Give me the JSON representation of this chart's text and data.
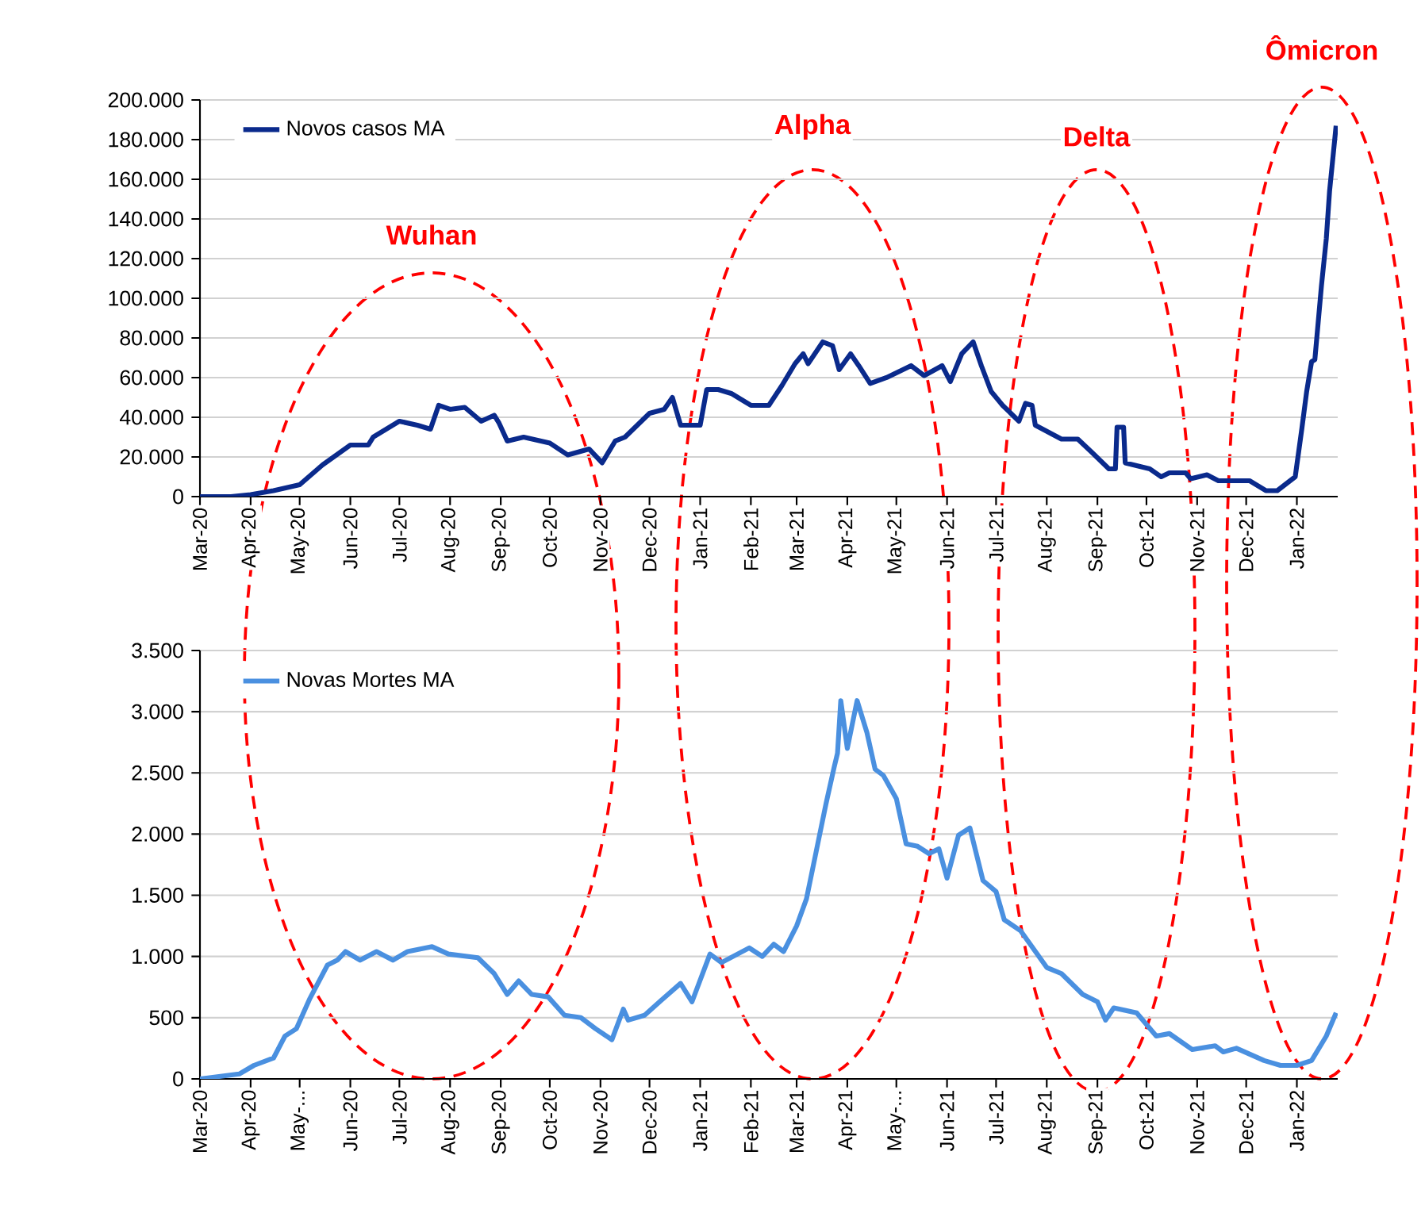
{
  "chart_data": [
    {
      "type": "line",
      "legend": "top left",
      "grid": "y",
      "xlim": [
        "2020-03-01",
        "2022-01-26"
      ],
      "ylim": [
        0,
        200000
      ],
      "xticks": [
        {
          "value": "2020-03-01",
          "label": "Mar-20"
        },
        {
          "value": "2020-04-01",
          "label": "Apr-20"
        },
        {
          "value": "2020-05-01",
          "label": "May-20"
        },
        {
          "value": "2020-06-01",
          "label": "Jun-20"
        },
        {
          "value": "2020-07-01",
          "label": "Jul-20"
        },
        {
          "value": "2020-08-01",
          "label": "Aug-20"
        },
        {
          "value": "2020-09-01",
          "label": "Sep-20"
        },
        {
          "value": "2020-10-01",
          "label": "Oct-20"
        },
        {
          "value": "2020-11-01",
          "label": "Nov-20"
        },
        {
          "value": "2020-12-01",
          "label": "Dec-20"
        },
        {
          "value": "2021-01-01",
          "label": "Jan-21"
        },
        {
          "value": "2021-02-01",
          "label": "Feb-21"
        },
        {
          "value": "2021-03-01",
          "label": "Mar-21"
        },
        {
          "value": "2021-04-01",
          "label": "Apr-21"
        },
        {
          "value": "2021-05-01",
          "label": "May-21"
        },
        {
          "value": "2021-06-01",
          "label": "Jun-21"
        },
        {
          "value": "2021-07-01",
          "label": "Jul-21"
        },
        {
          "value": "2021-08-01",
          "label": "Aug-21"
        },
        {
          "value": "2021-09-01",
          "label": "Sep-21"
        },
        {
          "value": "2021-10-01",
          "label": "Oct-21"
        },
        {
          "value": "2021-11-01",
          "label": "Nov-21"
        },
        {
          "value": "2021-12-01",
          "label": "Dec-21"
        },
        {
          "value": "2022-01-01",
          "label": "Jan-22"
        }
      ],
      "yticks": [
        0,
        {
          "value": 20000,
          "label": "20.000"
        },
        {
          "value": 40000,
          "label": "40.000"
        },
        {
          "value": 60000,
          "label": "60.000"
        },
        {
          "value": 80000,
          "label": "80.000"
        },
        {
          "value": 100000,
          "label": "100.000"
        },
        {
          "value": 120000,
          "label": "120.000"
        },
        {
          "value": 140000,
          "label": "140.000"
        },
        {
          "value": 160000,
          "label": "160.000"
        },
        {
          "value": 180000,
          "label": "180.000"
        },
        {
          "value": 200000,
          "label": "200.000"
        }
      ],
      "annotations": [
        "Wuhan",
        "Alpha",
        "Delta",
        "Ômicron"
      ],
      "series": [
        {
          "name": "Novos casos MA",
          "color": "#0a2a8c",
          "x": [
            "2020-03-01",
            "2020-03-20",
            "2020-04-01",
            "2020-04-15",
            "2020-05-01",
            "2020-05-15",
            "2020-06-01",
            "2020-06-12",
            "2020-06-15",
            "2020-07-01",
            "2020-07-12",
            "2020-07-20",
            "2020-07-25",
            "2020-08-01",
            "2020-08-10",
            "2020-08-20",
            "2020-08-28",
            "2020-08-31",
            "2020-09-05",
            "2020-09-15",
            "2020-10-01",
            "2020-10-12",
            "2020-10-25",
            "2020-11-02",
            "2020-11-10",
            "2020-11-16",
            "2020-12-01",
            "2020-12-10",
            "2020-12-15",
            "2020-12-20",
            "2021-01-01",
            "2021-01-05",
            "2021-01-12",
            "2021-01-20",
            "2021-02-01",
            "2021-02-12",
            "2021-02-20",
            "2021-02-28",
            "2021-03-05",
            "2021-03-08",
            "2021-03-17",
            "2021-03-23",
            "2021-03-27",
            "2021-04-03",
            "2021-04-08",
            "2021-04-15",
            "2021-04-25",
            "2021-05-10",
            "2021-05-18",
            "2021-05-29",
            "2021-06-03",
            "2021-06-10",
            "2021-06-17",
            "2021-06-22",
            "2021-06-28",
            "2021-07-05",
            "2021-07-15",
            "2021-07-19",
            "2021-07-23",
            "2021-07-25",
            "2021-08-10",
            "2021-08-20",
            "2021-08-29",
            "2021-09-08",
            "2021-09-12",
            "2021-09-13",
            "2021-09-17",
            "2021-09-18",
            "2021-10-03",
            "2021-10-10",
            "2021-10-15",
            "2021-10-25",
            "2021-10-28",
            "2021-11-07",
            "2021-11-14",
            "2021-12-03",
            "2021-12-13",
            "2021-12-20",
            "2021-12-31",
            "2022-01-04",
            "2022-01-07",
            "2022-01-10",
            "2022-01-12",
            "2022-01-16",
            "2022-01-19",
            "2022-01-21",
            "2022-01-25"
          ],
          "values": [
            0,
            0,
            1000,
            3000,
            6000,
            16000,
            26000,
            26000,
            30000,
            38000,
            36000,
            34000,
            46000,
            44000,
            45000,
            38000,
            41000,
            37000,
            28000,
            30000,
            27000,
            21000,
            24000,
            17000,
            28000,
            30000,
            42000,
            44000,
            50000,
            36000,
            36000,
            54000,
            54000,
            52000,
            46000,
            46000,
            56000,
            67000,
            72000,
            67000,
            78000,
            76000,
            64000,
            72000,
            66000,
            57000,
            60000,
            66000,
            61000,
            66000,
            58000,
            72000,
            78000,
            66000,
            53000,
            46000,
            38000,
            47000,
            46000,
            36000,
            29000,
            29000,
            22000,
            14000,
            14000,
            35000,
            35000,
            17000,
            14000,
            10000,
            12000,
            12000,
            9000,
            11000,
            8000,
            8000,
            3000,
            3000,
            10000,
            34000,
            53000,
            68000,
            69000,
            106000,
            130000,
            154000,
            187000
          ]
        }
      ]
    },
    {
      "type": "line",
      "legend": "top left",
      "grid": "y",
      "xlim": [
        "2020-03-01",
        "2022-01-26"
      ],
      "ylim": [
        0,
        3500
      ],
      "xticks": [
        {
          "value": "2020-03-01",
          "label": "Mar-20"
        },
        {
          "value": "2020-04-01",
          "label": "Apr-20"
        },
        {
          "value": "2020-05-01",
          "label": "May-..."
        },
        {
          "value": "2020-06-01",
          "label": "Jun-20"
        },
        {
          "value": "2020-07-01",
          "label": "Jul-20"
        },
        {
          "value": "2020-08-01",
          "label": "Aug-20"
        },
        {
          "value": "2020-09-01",
          "label": "Sep-20"
        },
        {
          "value": "2020-10-01",
          "label": "Oct-20"
        },
        {
          "value": "2020-11-01",
          "label": "Nov-20"
        },
        {
          "value": "2020-12-01",
          "label": "Dec-20"
        },
        {
          "value": "2021-01-01",
          "label": "Jan-21"
        },
        {
          "value": "2021-02-01",
          "label": "Feb-21"
        },
        {
          "value": "2021-03-01",
          "label": "Mar-21"
        },
        {
          "value": "2021-04-01",
          "label": "Apr-21"
        },
        {
          "value": "2021-05-01",
          "label": "May-..."
        },
        {
          "value": "2021-06-01",
          "label": "Jun-21"
        },
        {
          "value": "2021-07-01",
          "label": "Jul-21"
        },
        {
          "value": "2021-08-01",
          "label": "Aug-21"
        },
        {
          "value": "2021-09-01",
          "label": "Sep-21"
        },
        {
          "value": "2021-10-01",
          "label": "Oct-21"
        },
        {
          "value": "2021-11-01",
          "label": "Nov-21"
        },
        {
          "value": "2021-12-01",
          "label": "Dec-21"
        },
        {
          "value": "2022-01-01",
          "label": "Jan-22"
        }
      ],
      "yticks": [
        0,
        500,
        {
          "value": 1000,
          "label": "1.000"
        },
        {
          "value": 1500,
          "label": "1.500"
        },
        {
          "value": 2000,
          "label": "2.000"
        },
        {
          "value": 2500,
          "label": "2.500"
        },
        {
          "value": 3000,
          "label": "3.000"
        },
        {
          "value": 3500,
          "label": "3.500"
        }
      ],
      "series": [
        {
          "name": "Novas Mortes MA",
          "color": "#4a90e0",
          "x": [
            "2020-03-01",
            "2020-03-25",
            "2020-04-03",
            "2020-04-15",
            "2020-04-22",
            "2020-04-29",
            "2020-05-07",
            "2020-05-18",
            "2020-05-24",
            "2020-05-29",
            "2020-06-07",
            "2020-06-17",
            "2020-06-27",
            "2020-07-06",
            "2020-07-21",
            "2020-07-31",
            "2020-08-18",
            "2020-08-28",
            "2020-09-05",
            "2020-09-12",
            "2020-09-20",
            "2020-09-30",
            "2020-10-10",
            "2020-10-20",
            "2020-10-29",
            "2020-11-08",
            "2020-11-15",
            "2020-11-18",
            "2020-11-28",
            "2020-12-08",
            "2020-12-20",
            "2020-12-27",
            "2021-01-07",
            "2021-01-14",
            "2021-01-31",
            "2021-02-08",
            "2021-02-15",
            "2021-02-21",
            "2021-03-01",
            "2021-03-07",
            "2021-03-13",
            "2021-03-19",
            "2021-03-24",
            "2021-03-26",
            "2021-03-28",
            "2021-04-01",
            "2021-04-07",
            "2021-04-13",
            "2021-04-18",
            "2021-04-23",
            "2021-05-01",
            "2021-05-07",
            "2021-05-14",
            "2021-05-21",
            "2021-05-27",
            "2021-06-01",
            "2021-06-08",
            "2021-06-15",
            "2021-06-23",
            "2021-07-01",
            "2021-07-06",
            "2021-07-16",
            "2021-08-01",
            "2021-08-10",
            "2021-08-23",
            "2021-09-01",
            "2021-09-06",
            "2021-09-11",
            "2021-09-25",
            "2021-10-07",
            "2021-10-15",
            "2021-10-29",
            "2021-11-12",
            "2021-11-17",
            "2021-11-25",
            "2021-12-12",
            "2021-12-22",
            "2022-01-01",
            "2022-01-10",
            "2022-01-19",
            "2022-01-25"
          ],
          "values": [
            0,
            40,
            110,
            170,
            350,
            410,
            650,
            930,
            970,
            1040,
            970,
            1040,
            970,
            1040,
            1080,
            1020,
            990,
            860,
            690,
            800,
            690,
            670,
            520,
            500,
            410,
            320,
            570,
            480,
            520,
            640,
            780,
            630,
            1020,
            950,
            1070,
            1000,
            1100,
            1040,
            1250,
            1470,
            1860,
            2250,
            2550,
            2660,
            3090,
            2700,
            3090,
            2830,
            2530,
            2480,
            2290,
            1920,
            1900,
            1840,
            1880,
            1640,
            1990,
            2050,
            1620,
            1530,
            1300,
            1210,
            910,
            860,
            690,
            630,
            480,
            580,
            540,
            350,
            370,
            240,
            270,
            220,
            250,
            150,
            110,
            110,
            150,
            350,
            540
          ]
        }
      ]
    }
  ]
}
